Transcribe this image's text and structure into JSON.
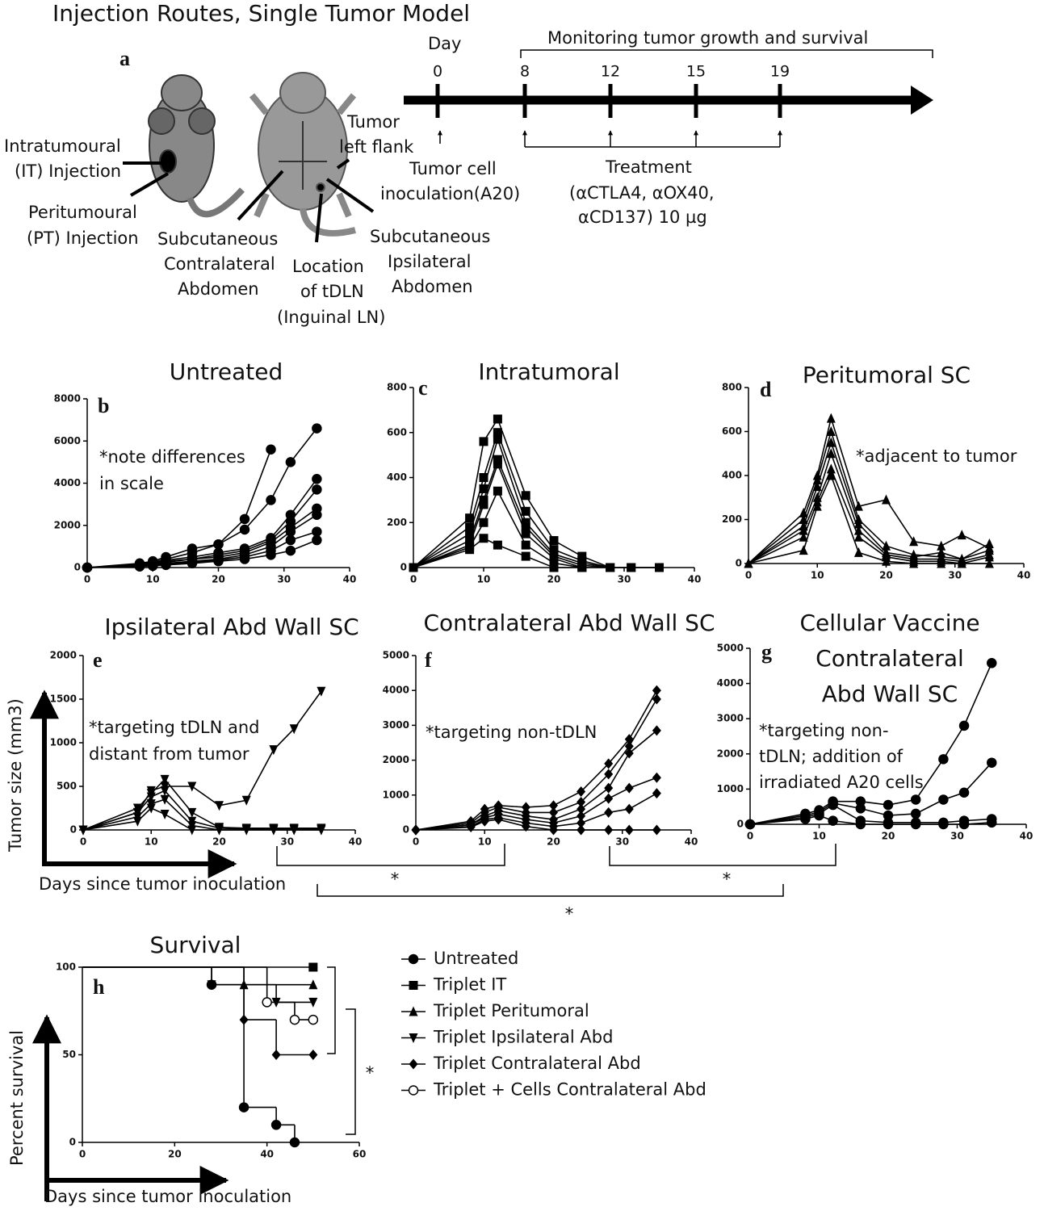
{
  "schematic": {
    "title": "Injection Routes, Single Tumor Model",
    "panel": "a",
    "labels": [
      [
        "Intratumoural",
        "(IT) Injection"
      ],
      [
        "Peritumoural",
        "(PT) Injection"
      ],
      [
        "Subcutaneous",
        "Contralateral",
        "Abdomen"
      ],
      [
        "Location",
        "of tDLN",
        "(Inguinal LN)"
      ],
      [
        "Tumor",
        "left flank"
      ],
      [
        "Subcutaneous",
        "Ipsilateral",
        "Abdomen"
      ]
    ],
    "day_label": "Day",
    "timeline_days": [
      "0",
      "8",
      "12",
      "15",
      "19"
    ],
    "monitoring": "Monitoring tumor growth and survival",
    "inoculation": [
      "Tumor cell",
      "inoculation(A20)"
    ],
    "treatment": [
      "Treatment",
      "(αCTLA4, αOX40,",
      "αCD137) 10 µg"
    ]
  },
  "y_axis_label": "Tumor size (mm3)",
  "x_axis_label": "Days since tumor inoculation",
  "significance": [
    "*",
    "*",
    "*",
    "*"
  ],
  "chart_data": [
    {
      "type": "line",
      "title": "Untreated",
      "panel": "b",
      "marker": "circle",
      "color": "#000000",
      "annotation_lines": [
        "*note differences",
        "in scale"
      ],
      "x": [
        0,
        8,
        10,
        12,
        16,
        20,
        24,
        28,
        31,
        35
      ],
      "xlim": [
        0,
        40
      ],
      "xticks": [
        0,
        10,
        20,
        30,
        40
      ],
      "ylim": [
        0,
        8000
      ],
      "yticks": [
        0,
        2000,
        4000,
        6000,
        8000
      ],
      "series": [
        {
          "values": [
            0,
            200,
            300,
            500,
            900,
            1100,
            2300,
            5600,
            null,
            null
          ]
        },
        {
          "values": [
            0,
            150,
            250,
            400,
            700,
            1100,
            1800,
            3200,
            5000,
            6600
          ]
        },
        {
          "values": [
            0,
            100,
            200,
            350,
            500,
            700,
            900,
            1400,
            2500,
            4200
          ]
        },
        {
          "values": [
            0,
            100,
            150,
            300,
            400,
            600,
            800,
            1300,
            2200,
            3700
          ]
        },
        {
          "values": [
            0,
            80,
            150,
            250,
            400,
            500,
            700,
            1200,
            1900,
            2800
          ]
        },
        {
          "values": [
            0,
            80,
            120,
            200,
            300,
            400,
            600,
            1000,
            1700,
            2500
          ]
        },
        {
          "values": [
            0,
            60,
            100,
            150,
            250,
            350,
            500,
            800,
            1300,
            1700
          ]
        },
        {
          "values": [
            0,
            50,
            80,
            120,
            200,
            300,
            400,
            600,
            800,
            1300
          ]
        }
      ]
    },
    {
      "type": "line",
      "title": "Intratumoral",
      "panel": "c",
      "marker": "square",
      "color": "#000000",
      "x": [
        0,
        8,
        10,
        12,
        16,
        20,
        24,
        28,
        31,
        35
      ],
      "xlim": [
        0,
        40
      ],
      "xticks": [
        0,
        10,
        20,
        30,
        40
      ],
      "ylim": [
        0,
        800
      ],
      "yticks": [
        0,
        200,
        400,
        600,
        800
      ],
      "series": [
        {
          "values": [
            0,
            220,
            560,
            660,
            320,
            120,
            50,
            0,
            0,
            0
          ]
        },
        {
          "values": [
            0,
            180,
            400,
            600,
            250,
            80,
            30,
            0,
            0,
            0
          ]
        },
        {
          "values": [
            0,
            150,
            350,
            570,
            200,
            60,
            20,
            0,
            null,
            null
          ]
        },
        {
          "values": [
            0,
            120,
            300,
            480,
            180,
            50,
            10,
            0,
            null,
            null
          ]
        },
        {
          "values": [
            0,
            100,
            280,
            460,
            150,
            40,
            0,
            0,
            null,
            null
          ]
        },
        {
          "values": [
            0,
            90,
            200,
            340,
            100,
            20,
            0,
            null,
            null,
            null
          ]
        },
        {
          "values": [
            0,
            80,
            130,
            100,
            50,
            0,
            0,
            null,
            null,
            null
          ]
        }
      ]
    },
    {
      "type": "line",
      "title": "Peritumoral SC",
      "panel": "d",
      "marker": "triangle",
      "color": "#000000",
      "annotation_lines": [
        "*adjacent to tumor"
      ],
      "x": [
        0,
        8,
        10,
        12,
        16,
        20,
        24,
        28,
        31,
        35
      ],
      "xlim": [
        0,
        40
      ],
      "xticks": [
        0,
        10,
        20,
        30,
        40
      ],
      "ylim": [
        0,
        800
      ],
      "yticks": [
        0,
        200,
        400,
        600,
        800
      ],
      "series": [
        {
          "values": [
            0,
            230,
            400,
            660,
            260,
            290,
            100,
            80,
            130,
            70
          ]
        },
        {
          "values": [
            0,
            200,
            380,
            600,
            200,
            80,
            40,
            30,
            20,
            90
          ]
        },
        {
          "values": [
            0,
            170,
            350,
            550,
            180,
            50,
            30,
            50,
            20,
            60
          ]
        },
        {
          "values": [
            0,
            150,
            300,
            500,
            150,
            40,
            20,
            20,
            10,
            40
          ]
        },
        {
          "values": [
            0,
            120,
            280,
            430,
            120,
            30,
            10,
            10,
            0,
            30
          ]
        },
        {
          "values": [
            0,
            60,
            260,
            400,
            50,
            10,
            0,
            0,
            0,
            0
          ]
        }
      ]
    },
    {
      "type": "line",
      "title": "Ipsilateral Abd Wall SC",
      "panel": "e",
      "marker": "triangle-down",
      "color": "#000000",
      "annotation_lines": [
        "*targeting tDLN and",
        "distant from tumor"
      ],
      "x": [
        0,
        8,
        10,
        12,
        16,
        20,
        24,
        28,
        31,
        35
      ],
      "xlim": [
        0,
        40
      ],
      "xticks": [
        0,
        10,
        20,
        30,
        40
      ],
      "ylim": [
        0,
        2000
      ],
      "yticks": [
        0,
        500,
        1000,
        1500,
        2000
      ],
      "series": [
        {
          "values": [
            0,
            200,
            450,
            500,
            500,
            280,
            340,
            920,
            1160,
            1590
          ]
        },
        {
          "values": [
            0,
            250,
            420,
            580,
            200,
            30,
            20,
            20,
            20,
            20
          ]
        },
        {
          "values": [
            0,
            200,
            380,
            450,
            100,
            20,
            10,
            10,
            10,
            10
          ]
        },
        {
          "values": [
            0,
            150,
            300,
            350,
            50,
            0,
            0,
            0,
            0,
            0
          ]
        },
        {
          "values": [
            0,
            100,
            250,
            180,
            0,
            0,
            0,
            0,
            0,
            0
          ]
        }
      ]
    },
    {
      "type": "line",
      "title": "Contralateral Abd Wall SC",
      "panel": "f",
      "marker": "diamond",
      "color": "#000000",
      "annotation_lines": [
        "*targeting non-tDLN"
      ],
      "x": [
        0,
        8,
        10,
        12,
        16,
        20,
        24,
        28,
        31,
        35
      ],
      "xlim": [
        0,
        40
      ],
      "xticks": [
        0,
        10,
        20,
        30,
        40
      ],
      "ylim": [
        0,
        5000
      ],
      "yticks": [
        0,
        1000,
        2000,
        3000,
        4000,
        5000
      ],
      "series": [
        {
          "values": [
            0,
            250,
            600,
            700,
            650,
            700,
            1100,
            1900,
            2600,
            4000
          ]
        },
        {
          "values": [
            0,
            200,
            500,
            650,
            500,
            500,
            800,
            1600,
            2400,
            3750
          ]
        },
        {
          "values": [
            0,
            150,
            400,
            550,
            400,
            300,
            600,
            1200,
            2200,
            2850
          ]
        },
        {
          "values": [
            0,
            150,
            350,
            450,
            300,
            200,
            400,
            900,
            1200,
            1500
          ]
        },
        {
          "values": [
            0,
            100,
            300,
            350,
            200,
            100,
            200,
            500,
            600,
            1050
          ]
        },
        {
          "values": [
            0,
            80,
            250,
            300,
            100,
            0,
            0,
            0,
            0,
            0
          ]
        }
      ]
    },
    {
      "type": "line",
      "title_lines": [
        "Cellular Vaccine",
        "Contralateral",
        "Abd Wall SC"
      ],
      "panel": "g",
      "marker": "circle",
      "color": "#000000",
      "annotation_lines": [
        "*targeting non-",
        "tDLN; addition of",
        "irradiated A20 cells"
      ],
      "x": [
        0,
        8,
        10,
        12,
        16,
        20,
        24,
        28,
        31,
        35
      ],
      "xlim": [
        0,
        40
      ],
      "xticks": [
        0,
        10,
        20,
        30,
        40
      ],
      "ylim": [
        0,
        5000
      ],
      "yticks": [
        0,
        1000,
        2000,
        3000,
        4000,
        5000
      ],
      "series": [
        {
          "values": [
            0,
            300,
            400,
            650,
            650,
            550,
            700,
            1850,
            2800,
            4580
          ]
        },
        {
          "values": [
            0,
            250,
            350,
            600,
            450,
            250,
            300,
            700,
            900,
            1750
          ]
        },
        {
          "values": [
            0,
            200,
            300,
            550,
            100,
            50,
            50,
            50,
            100,
            150
          ]
        },
        {
          "values": [
            0,
            150,
            250,
            100,
            0,
            0,
            0,
            0,
            0,
            50
          ]
        }
      ]
    },
    {
      "type": "step",
      "title": "Survival",
      "panel": "h",
      "color": "#000000",
      "y_axis_label": "Percent survival",
      "x_axis_label": "Days since tumor inoculation",
      "xlim": [
        0,
        60
      ],
      "xticks": [
        0,
        20,
        40,
        60
      ],
      "ylim": [
        0,
        100
      ],
      "yticks": [
        0,
        50,
        100
      ],
      "series": [
        {
          "name": "Untreated",
          "marker": "circle",
          "x": [
            0,
            28,
            35,
            42,
            46
          ],
          "values": [
            100,
            90,
            20,
            10,
            0
          ]
        },
        {
          "name": "Triplet IT",
          "marker": "square",
          "x": [
            0,
            50
          ],
          "values": [
            100,
            100
          ]
        },
        {
          "name": "Triplet Peritumoral",
          "marker": "triangle",
          "x": [
            0,
            35,
            50
          ],
          "values": [
            100,
            90,
            90
          ]
        },
        {
          "name": "Triplet Ipsilateral Abd",
          "marker": "triangle-down",
          "x": [
            0,
            28,
            42,
            50
          ],
          "values": [
            100,
            90,
            80,
            80
          ]
        },
        {
          "name": "Triplet Contralateral Abd",
          "marker": "diamond",
          "x": [
            0,
            35,
            42,
            50
          ],
          "values": [
            100,
            70,
            50,
            50
          ]
        },
        {
          "name": "Triplet + Cells Contralateral Abd",
          "marker": "open-circle",
          "x": [
            0,
            40,
            46,
            50
          ],
          "values": [
            100,
            80,
            70,
            70
          ]
        }
      ]
    }
  ]
}
